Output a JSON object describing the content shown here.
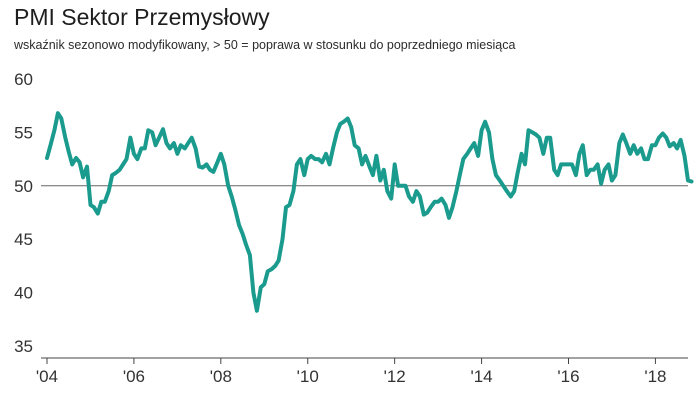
{
  "title": "PMI Sektor Przemysłowy",
  "subtitle": "wskaźnik sezonowo modyfikowany, > 50 = poprawa w stosunku do poprzedniego miesiąca",
  "colors": {
    "line": "#1a9b8e",
    "reference": "#666666",
    "axis": "#444444",
    "text": "#333333"
  },
  "chart_data": {
    "type": "line",
    "title": "PMI Sektor Przemysłowy",
    "subtitle": "wskaźnik sezonowo modyfikowany, > 50 = poprawa w stosunku do poprzedniego miesiąca",
    "xlabel": "",
    "ylabel": "",
    "xlim": [
      2004.0,
      2018.75
    ],
    "ylim": [
      35,
      60
    ],
    "yticks": [
      35,
      40,
      45,
      50,
      55,
      60
    ],
    "xticks": [
      {
        "value": 2004,
        "label": "'04"
      },
      {
        "value": 2006,
        "label": "'06"
      },
      {
        "value": 2008,
        "label": "'08"
      },
      {
        "value": 2010,
        "label": "'10"
      },
      {
        "value": 2012,
        "label": "'12"
      },
      {
        "value": 2014,
        "label": "'14"
      },
      {
        "value": 2016,
        "label": "'16"
      },
      {
        "value": 2018,
        "label": "'18"
      }
    ],
    "reference_line": 50,
    "grid": false,
    "legend": "none",
    "series": [
      {
        "points": [
          [
            2004.0,
            52.6
          ],
          [
            2004.08,
            53.8
          ],
          [
            2004.17,
            55.2
          ],
          [
            2004.25,
            56.8
          ],
          [
            2004.33,
            56.3
          ],
          [
            2004.42,
            54.5
          ],
          [
            2004.5,
            53.2
          ],
          [
            2004.58,
            52.0
          ],
          [
            2004.67,
            52.6
          ],
          [
            2004.75,
            52.2
          ],
          [
            2004.83,
            50.8
          ],
          [
            2004.92,
            51.8
          ],
          [
            2005.0,
            48.2
          ],
          [
            2005.08,
            48.0
          ],
          [
            2005.17,
            47.4
          ],
          [
            2005.25,
            48.5
          ],
          [
            2005.33,
            48.5
          ],
          [
            2005.42,
            49.5
          ],
          [
            2005.5,
            51.0
          ],
          [
            2005.58,
            51.2
          ],
          [
            2005.67,
            51.5
          ],
          [
            2005.75,
            52.0
          ],
          [
            2005.83,
            52.5
          ],
          [
            2005.92,
            54.5
          ],
          [
            2006.0,
            53.0
          ],
          [
            2006.08,
            52.5
          ],
          [
            2006.17,
            53.5
          ],
          [
            2006.25,
            53.5
          ],
          [
            2006.33,
            55.2
          ],
          [
            2006.42,
            55.0
          ],
          [
            2006.5,
            53.8
          ],
          [
            2006.58,
            54.5
          ],
          [
            2006.67,
            55.3
          ],
          [
            2006.75,
            54.0
          ],
          [
            2006.83,
            53.5
          ],
          [
            2006.92,
            54.0
          ],
          [
            2007.0,
            53.0
          ],
          [
            2007.08,
            53.8
          ],
          [
            2007.17,
            53.5
          ],
          [
            2007.25,
            54.0
          ],
          [
            2007.33,
            54.5
          ],
          [
            2007.42,
            53.5
          ],
          [
            2007.5,
            51.8
          ],
          [
            2007.58,
            51.7
          ],
          [
            2007.67,
            52.0
          ],
          [
            2007.75,
            51.5
          ],
          [
            2007.83,
            51.3
          ],
          [
            2007.92,
            52.2
          ],
          [
            2008.0,
            53.0
          ],
          [
            2008.08,
            52.0
          ],
          [
            2008.17,
            50.0
          ],
          [
            2008.25,
            49.0
          ],
          [
            2008.33,
            47.8
          ],
          [
            2008.42,
            46.3
          ],
          [
            2008.5,
            45.5
          ],
          [
            2008.58,
            44.5
          ],
          [
            2008.67,
            43.5
          ],
          [
            2008.75,
            40.0
          ],
          [
            2008.83,
            38.3
          ],
          [
            2008.92,
            40.5
          ],
          [
            2009.0,
            40.8
          ],
          [
            2009.08,
            42.0
          ],
          [
            2009.17,
            42.2
          ],
          [
            2009.25,
            42.5
          ],
          [
            2009.33,
            43.0
          ],
          [
            2009.42,
            45.0
          ],
          [
            2009.5,
            48.0
          ],
          [
            2009.58,
            48.2
          ],
          [
            2009.67,
            49.5
          ],
          [
            2009.75,
            52.0
          ],
          [
            2009.83,
            52.5
          ],
          [
            2009.92,
            51.0
          ],
          [
            2010.0,
            52.5
          ],
          [
            2010.08,
            52.8
          ],
          [
            2010.17,
            52.5
          ],
          [
            2010.25,
            52.5
          ],
          [
            2010.33,
            52.2
          ],
          [
            2010.42,
            53.0
          ],
          [
            2010.5,
            52.0
          ],
          [
            2010.58,
            53.5
          ],
          [
            2010.67,
            55.0
          ],
          [
            2010.75,
            55.8
          ],
          [
            2010.83,
            56.0
          ],
          [
            2010.92,
            56.3
          ],
          [
            2011.0,
            55.5
          ],
          [
            2011.08,
            53.8
          ],
          [
            2011.17,
            53.5
          ],
          [
            2011.25,
            52.0
          ],
          [
            2011.33,
            52.8
          ],
          [
            2011.42,
            51.8
          ],
          [
            2011.5,
            51.0
          ],
          [
            2011.58,
            52.8
          ],
          [
            2011.67,
            50.5
          ],
          [
            2011.75,
            51.5
          ],
          [
            2011.83,
            49.5
          ],
          [
            2011.92,
            48.8
          ],
          [
            2012.0,
            52.0
          ],
          [
            2012.08,
            50.0
          ],
          [
            2012.17,
            50.0
          ],
          [
            2012.25,
            50.0
          ],
          [
            2012.33,
            49.0
          ],
          [
            2012.42,
            48.5
          ],
          [
            2012.5,
            49.5
          ],
          [
            2012.58,
            49.0
          ],
          [
            2012.67,
            47.3
          ],
          [
            2012.75,
            47.5
          ],
          [
            2012.83,
            48.0
          ],
          [
            2012.92,
            48.5
          ],
          [
            2013.0,
            48.5
          ],
          [
            2013.08,
            48.8
          ],
          [
            2013.17,
            48.2
          ],
          [
            2013.25,
            47.0
          ],
          [
            2013.33,
            48.0
          ],
          [
            2013.42,
            49.5
          ],
          [
            2013.5,
            51.0
          ],
          [
            2013.58,
            52.5
          ],
          [
            2013.67,
            53.0
          ],
          [
            2013.75,
            53.5
          ],
          [
            2013.83,
            54.0
          ],
          [
            2013.92,
            52.8
          ],
          [
            2014.0,
            55.2
          ],
          [
            2014.08,
            56.0
          ],
          [
            2014.17,
            55.0
          ],
          [
            2014.25,
            52.5
          ],
          [
            2014.33,
            51.0
          ],
          [
            2014.42,
            50.5
          ],
          [
            2014.5,
            50.0
          ],
          [
            2014.58,
            49.5
          ],
          [
            2014.67,
            49.0
          ],
          [
            2014.75,
            49.5
          ],
          [
            2014.83,
            51.2
          ],
          [
            2014.92,
            53.0
          ],
          [
            2015.0,
            52.0
          ],
          [
            2015.08,
            55.2
          ],
          [
            2015.17,
            55.0
          ],
          [
            2015.25,
            54.8
          ],
          [
            2015.33,
            54.5
          ],
          [
            2015.42,
            53.0
          ],
          [
            2015.5,
            54.5
          ],
          [
            2015.58,
            54.5
          ],
          [
            2015.67,
            51.5
          ],
          [
            2015.75,
            51.0
          ],
          [
            2015.83,
            52.0
          ],
          [
            2015.92,
            52.0
          ],
          [
            2016.0,
            52.0
          ],
          [
            2016.08,
            52.0
          ],
          [
            2016.17,
            51.0
          ],
          [
            2016.25,
            53.0
          ],
          [
            2016.33,
            53.8
          ],
          [
            2016.42,
            51.0
          ],
          [
            2016.5,
            51.5
          ],
          [
            2016.58,
            51.5
          ],
          [
            2016.67,
            52.0
          ],
          [
            2016.75,
            50.2
          ],
          [
            2016.83,
            51.5
          ],
          [
            2016.92,
            52.0
          ],
          [
            2017.0,
            50.5
          ],
          [
            2017.08,
            51.0
          ],
          [
            2017.17,
            54.0
          ],
          [
            2017.25,
            54.8
          ],
          [
            2017.33,
            54.0
          ],
          [
            2017.42,
            53.0
          ],
          [
            2017.5,
            53.8
          ],
          [
            2017.58,
            53.0
          ],
          [
            2017.67,
            53.5
          ],
          [
            2017.75,
            52.5
          ],
          [
            2017.83,
            52.5
          ],
          [
            2017.92,
            53.8
          ],
          [
            2018.0,
            53.8
          ],
          [
            2018.08,
            54.5
          ],
          [
            2018.17,
            54.9
          ],
          [
            2018.25,
            54.5
          ],
          [
            2018.33,
            53.7
          ],
          [
            2018.42,
            54.0
          ],
          [
            2018.5,
            53.5
          ],
          [
            2018.58,
            54.3
          ],
          [
            2018.67,
            52.8
          ],
          [
            2018.75,
            50.5
          ],
          [
            2018.83,
            50.4
          ]
        ]
      }
    ]
  }
}
